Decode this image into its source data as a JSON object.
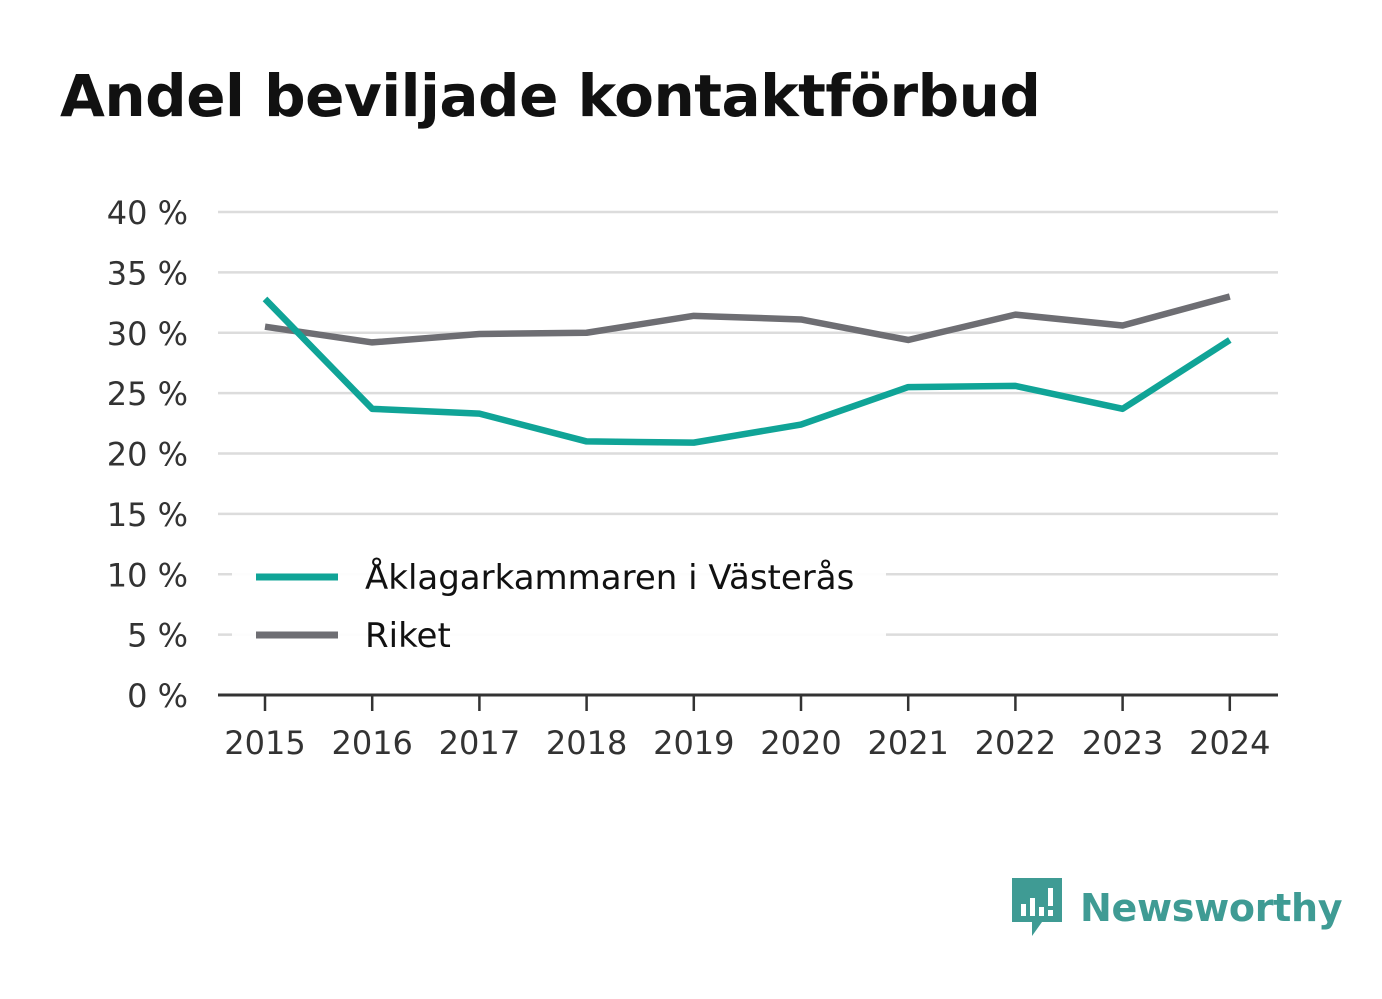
{
  "title": "Andel beviljade kontaktförbud",
  "brand": {
    "name": "Newsworthy",
    "color": "#3f9b94"
  },
  "chart_data": {
    "type": "line",
    "title": "Andel beviljade kontaktförbud",
    "x": [
      "2015",
      "2016",
      "2017",
      "2018",
      "2019",
      "2020",
      "2021",
      "2022",
      "2023",
      "2024"
    ],
    "y_ticks": [
      "0 %",
      "5 %",
      "10 %",
      "15 %",
      "20 %",
      "25 %",
      "30 %",
      "35 %",
      "40 %"
    ],
    "ylim": [
      0,
      40
    ],
    "ylabel": "",
    "xlabel": "",
    "grid": true,
    "legend_position": "bottom-left inside",
    "series": [
      {
        "name": "Åklagarkammaren i Västerås",
        "color": "#10a497",
        "values": [
          32.8,
          23.7,
          23.3,
          21.0,
          20.9,
          22.4,
          25.5,
          25.6,
          23.7,
          29.4
        ]
      },
      {
        "name": "Riket",
        "color": "#6e6e73",
        "values": [
          30.5,
          29.2,
          29.9,
          30.0,
          31.4,
          31.1,
          29.4,
          31.5,
          30.6,
          33.0
        ]
      }
    ]
  }
}
